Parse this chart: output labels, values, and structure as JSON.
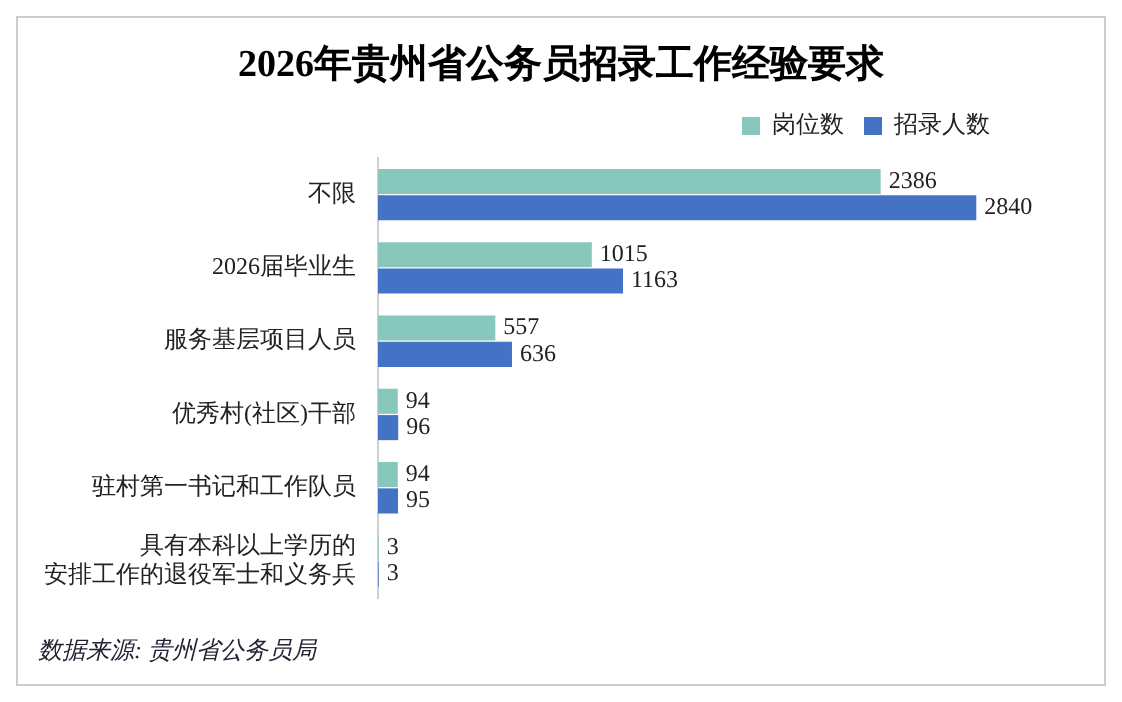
{
  "chart_data": {
    "type": "bar",
    "orientation": "horizontal",
    "title": "2026年贵州省公务员招录工作经验要求",
    "categories": [
      "不限",
      "2026届毕业生",
      "服务基层项目人员",
      "优秀村(社区)干部",
      "驻村第一书记和工作队员",
      "具有本科以上学历的安排工作的退役军士和义务兵"
    ],
    "series": [
      {
        "name": "岗位数",
        "color": "#88c8bc",
        "values": [
          2386,
          1015,
          557,
          94,
          94,
          3
        ]
      },
      {
        "name": "招录人数",
        "color": "#4472c4",
        "values": [
          2840,
          1163,
          636,
          96,
          95,
          3
        ]
      }
    ],
    "data_labels": true,
    "legend": "top right",
    "grid": false,
    "annotations": [
      "数据来源:  贵州省公务员局"
    ]
  }
}
